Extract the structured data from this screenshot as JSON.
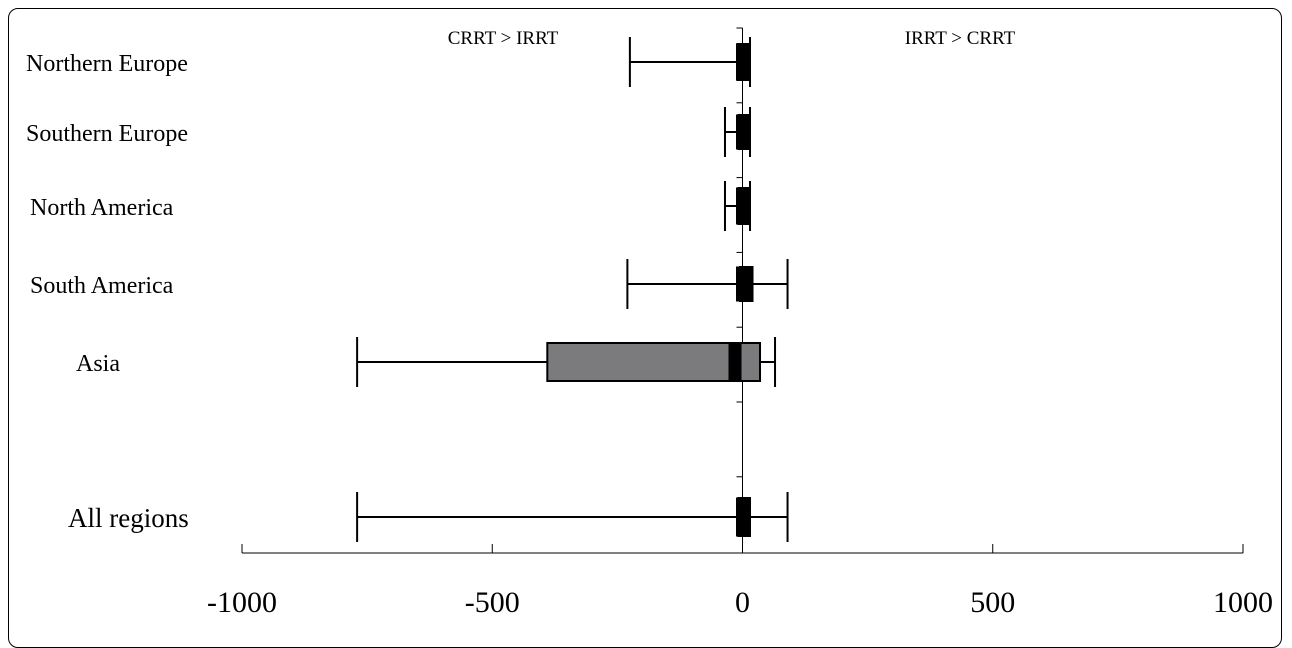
{
  "chart_data": {
    "type": "box",
    "annotations": {
      "left": "CRRT > IRRT",
      "right": "IRRT > CRRT"
    },
    "xlim": [
      -1000,
      1000
    ],
    "xticks": [
      -1000,
      -500,
      0,
      500,
      1000
    ],
    "grid": false,
    "categories": [
      "Northern Europe",
      "Southern Europe",
      "North America",
      "South America",
      "Asia",
      "All regions"
    ],
    "series": [
      {
        "category": "Northern Europe",
        "whisker_low": -225,
        "whisker_high": 15,
        "q1": -10,
        "median": 0,
        "q3": 15
      },
      {
        "category": "Southern Europe",
        "whisker_low": -35,
        "whisker_high": 15,
        "q1": -8,
        "median": 0,
        "q3": 15
      },
      {
        "category": "North America",
        "whisker_low": -35,
        "whisker_high": 15,
        "q1": -8,
        "median": 0,
        "q3": 15
      },
      {
        "category": "South America",
        "whisker_low": -230,
        "whisker_high": 90,
        "q1": -5,
        "median": 0,
        "q3": 20
      },
      {
        "category": "Asia",
        "whisker_low": -770,
        "whisker_high": 65,
        "q1": -390,
        "median": -15,
        "q3": 35
      },
      {
        "category": "All regions",
        "whisker_low": -770,
        "whisker_high": 90,
        "q1": -8,
        "median": 0,
        "q3": 15
      }
    ],
    "colors": {
      "box": "#7b7b7d",
      "median": "#000000",
      "line": "#000000"
    }
  }
}
